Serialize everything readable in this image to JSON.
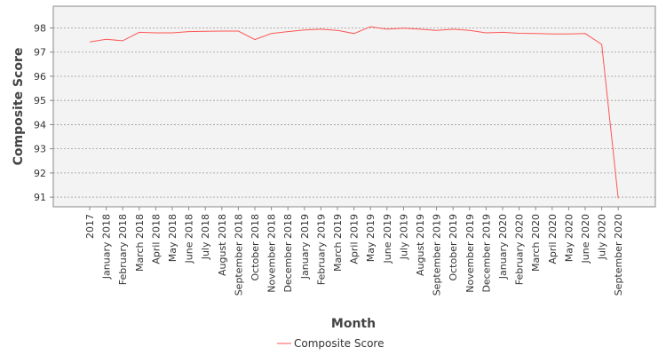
{
  "chart_data": {
    "type": "line",
    "title": "",
    "xlabel": "Month",
    "ylabel": "Composite Score",
    "ylim": [
      90.6,
      98.9
    ],
    "yticks": [
      91,
      92,
      93,
      94,
      95,
      96,
      97,
      98
    ],
    "grid": true,
    "legend_position": "bottom-center",
    "categories": [
      "2017",
      "January 2018",
      "February 2018",
      "March 2018",
      "April 2018",
      "May 2018",
      "June 2018",
      "July 2018",
      "August 2018",
      "September 2018",
      "October 2018",
      "November 2018",
      "December 2018",
      "January 2019",
      "February 2019",
      "March 2019",
      "April 2019",
      "May 2019",
      "June 2019",
      "July 2019",
      "August 2019",
      "September 2019",
      "October 2019",
      "November 2019",
      "December 2019",
      "January 2020",
      "February 2020",
      "March 2020",
      "April 2020",
      "May 2020",
      "June 2020",
      "July 2020",
      "September 2020"
    ],
    "series": [
      {
        "name": "Composite Score",
        "color": "#ff5555",
        "values": [
          97.42,
          97.53,
          97.47,
          97.82,
          97.8,
          97.8,
          97.85,
          97.86,
          97.87,
          97.87,
          97.52,
          97.77,
          97.85,
          97.92,
          97.95,
          97.9,
          97.77,
          98.05,
          97.95,
          97.99,
          97.95,
          97.9,
          97.95,
          97.9,
          97.8,
          97.82,
          97.78,
          97.77,
          97.75,
          97.75,
          97.77,
          97.32,
          90.95
        ]
      }
    ]
  }
}
